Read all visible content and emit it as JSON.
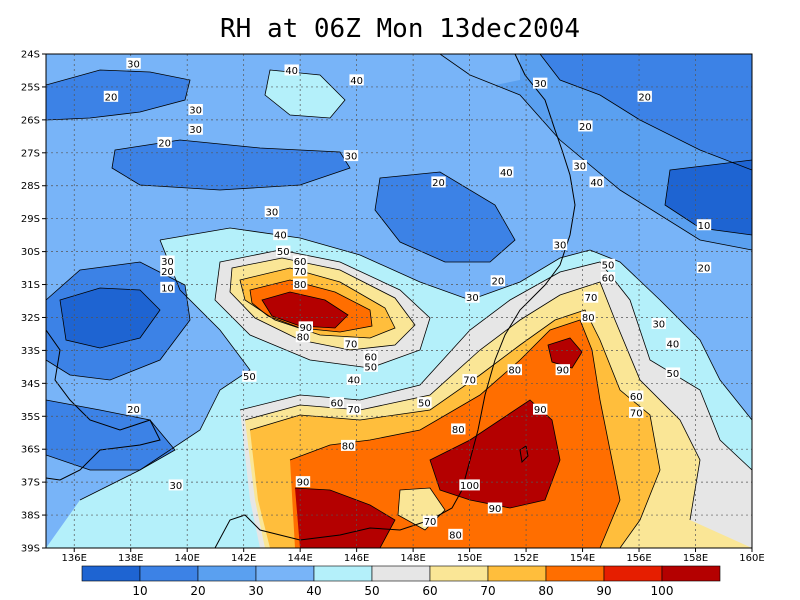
{
  "title": "RH at 06Z Mon 13dec2004",
  "lat_ticks": [
    "24S",
    "25S",
    "26S",
    "27S",
    "28S",
    "29S",
    "30S",
    "31S",
    "32S",
    "33S",
    "34S",
    "35S",
    "36S",
    "37S",
    "38S",
    "39S"
  ],
  "lon_ticks": [
    "136E",
    "138E",
    "140E",
    "142E",
    "144E",
    "146E",
    "148E",
    "150E",
    "152E",
    "154E",
    "156E",
    "158E",
    "160E"
  ],
  "colorbar": {
    "colors": [
      "#1e64d2",
      "#3c82e6",
      "#5aa0f0",
      "#78b4f8",
      "#b4f0fa",
      "#e6e6e6",
      "#fae696",
      "#ffbe3c",
      "#ff6e00",
      "#e61e00",
      "#b40000"
    ],
    "labels": [
      "10",
      "20",
      "30",
      "40",
      "50",
      "60",
      "70",
      "80",
      "90",
      "100"
    ]
  },
  "contour_labels": [
    {
      "text": "30",
      "lon": 138.1,
      "lat": 24.3
    },
    {
      "text": "20",
      "lon": 137.3,
      "lat": 25.3
    },
    {
      "text": "30",
      "lon": 140.3,
      "lat": 25.7
    },
    {
      "text": "30",
      "lon": 140.3,
      "lat": 26.3
    },
    {
      "text": "20",
      "lon": 139.2,
      "lat": 26.7
    },
    {
      "text": "40",
      "lon": 143.7,
      "lat": 24.5
    },
    {
      "text": "40",
      "lon": 146.0,
      "lat": 24.8
    },
    {
      "text": "30",
      "lon": 145.8,
      "lat": 27.1
    },
    {
      "text": "30",
      "lon": 152.5,
      "lat": 24.9
    },
    {
      "text": "20",
      "lon": 156.2,
      "lat": 25.3
    },
    {
      "text": "20",
      "lon": 154.1,
      "lat": 26.2
    },
    {
      "text": "30",
      "lon": 153.9,
      "lat": 27.4
    },
    {
      "text": "40",
      "lon": 151.3,
      "lat": 27.6
    },
    {
      "text": "40",
      "lon": 154.5,
      "lat": 27.9
    },
    {
      "text": "20",
      "lon": 148.9,
      "lat": 27.9
    },
    {
      "text": "30",
      "lon": 143.0,
      "lat": 28.8
    },
    {
      "text": "40",
      "lon": 143.3,
      "lat": 29.5
    },
    {
      "text": "50",
      "lon": 143.4,
      "lat": 30.0
    },
    {
      "text": "30",
      "lon": 153.2,
      "lat": 29.8
    },
    {
      "text": "10",
      "lon": 158.3,
      "lat": 29.2
    },
    {
      "text": "20",
      "lon": 158.3,
      "lat": 30.5
    },
    {
      "text": "20",
      "lon": 151.0,
      "lat": 30.9
    },
    {
      "text": "30",
      "lon": 150.1,
      "lat": 31.4
    },
    {
      "text": "50",
      "lon": 154.9,
      "lat": 30.4
    },
    {
      "text": "60",
      "lon": 154.9,
      "lat": 30.8
    },
    {
      "text": "70",
      "lon": 154.3,
      "lat": 31.4
    },
    {
      "text": "80",
      "lon": 154.2,
      "lat": 32.0
    },
    {
      "text": "30",
      "lon": 139.3,
      "lat": 30.3
    },
    {
      "text": "20",
      "lon": 139.3,
      "lat": 30.6
    },
    {
      "text": "10",
      "lon": 139.3,
      "lat": 31.1
    },
    {
      "text": "60",
      "lon": 144.0,
      "lat": 30.3
    },
    {
      "text": "70",
      "lon": 144.0,
      "lat": 30.6
    },
    {
      "text": "80",
      "lon": 144.0,
      "lat": 31.0
    },
    {
      "text": "90",
      "lon": 144.2,
      "lat": 32.3
    },
    {
      "text": "80",
      "lon": 144.1,
      "lat": 32.6
    },
    {
      "text": "70",
      "lon": 145.8,
      "lat": 32.8
    },
    {
      "text": "60",
      "lon": 146.5,
      "lat": 33.2
    },
    {
      "text": "50",
      "lon": 146.5,
      "lat": 33.5
    },
    {
      "text": "30",
      "lon": 156.7,
      "lat": 32.2
    },
    {
      "text": "40",
      "lon": 157.2,
      "lat": 32.8
    },
    {
      "text": "90",
      "lon": 153.3,
      "lat": 33.6
    },
    {
      "text": "80",
      "lon": 151.6,
      "lat": 33.6
    },
    {
      "text": "70",
      "lon": 150.0,
      "lat": 33.9
    },
    {
      "text": "50",
      "lon": 157.2,
      "lat": 33.7
    },
    {
      "text": "50",
      "lon": 142.2,
      "lat": 33.8
    },
    {
      "text": "40",
      "lon": 145.9,
      "lat": 33.9
    },
    {
      "text": "60",
      "lon": 145.3,
      "lat": 34.6
    },
    {
      "text": "70",
      "lon": 145.9,
      "lat": 34.8
    },
    {
      "text": "50",
      "lon": 148.4,
      "lat": 34.6
    },
    {
      "text": "60",
      "lon": 155.9,
      "lat": 34.4
    },
    {
      "text": "70",
      "lon": 155.9,
      "lat": 34.9
    },
    {
      "text": "90",
      "lon": 152.5,
      "lat": 34.8
    },
    {
      "text": "80",
      "lon": 149.6,
      "lat": 35.4
    },
    {
      "text": "80",
      "lon": 145.7,
      "lat": 35.9
    },
    {
      "text": "20",
      "lon": 138.1,
      "lat": 34.8
    },
    {
      "text": "30",
      "lon": 139.6,
      "lat": 37.1
    },
    {
      "text": "90",
      "lon": 144.1,
      "lat": 37.0
    },
    {
      "text": "100",
      "lon": 150.0,
      "lat": 37.1
    },
    {
      "text": "90",
      "lon": 150.9,
      "lat": 37.8
    },
    {
      "text": "70",
      "lon": 148.6,
      "lat": 38.2
    },
    {
      "text": "80",
      "lon": 149.5,
      "lat": 38.6
    }
  ]
}
